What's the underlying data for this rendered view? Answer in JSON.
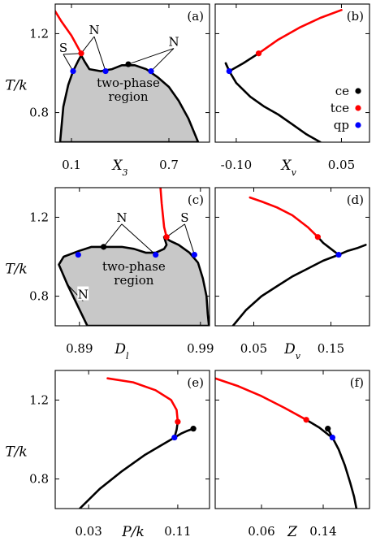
{
  "figure": {
    "y_axis_label": "T/k",
    "legend": [
      {
        "label": "ce",
        "color": "#000000"
      },
      {
        "label": "tce",
        "color": "#ff0000"
      },
      {
        "label": "qp",
        "color": "#0000ff"
      }
    ],
    "region_label": [
      "two-phase",
      "region"
    ]
  },
  "chart_data": [
    {
      "type": "line",
      "panel": "(a)",
      "xlabel": "X_3",
      "ylabel": "T/k",
      "xlim": [
        0.0,
        0.95
      ],
      "ylim": [
        0.65,
        1.35
      ],
      "x_ticks": [
        0.1,
        0.4,
        0.7
      ],
      "x_tick_labels": [
        "0.1",
        "X_3",
        "0.7"
      ],
      "y_ticks": [
        0.8,
        1.2
      ],
      "y_tick_labels": [
        "0.8",
        "1.2"
      ],
      "series": [
        {
          "color": "black",
          "fill": "#c8c8c8",
          "closed": true,
          "x": [
            0.03,
            0.05,
            0.08,
            0.11,
            0.14,
            0.16,
            0.18,
            0.21,
            0.28,
            0.35,
            0.41,
            0.49,
            0.56,
            0.63,
            0.7,
            0.76,
            0.82,
            0.86,
            0.88
          ],
          "y": [
            0.65,
            0.83,
            0.94,
            1.01,
            1.06,
            1.09,
            1.06,
            1.02,
            1.01,
            1.02,
            1.04,
            1.04,
            1.02,
            0.98,
            0.93,
            0.86,
            0.77,
            0.69,
            0.65
          ]
        },
        {
          "color": "red",
          "x": [
            -0.05,
            0.04,
            0.1,
            0.16
          ],
          "y": [
            1.38,
            1.26,
            1.19,
            1.1
          ]
        }
      ],
      "points": [
        {
          "kind": "tce",
          "x": 0.16,
          "y": 1.1
        },
        {
          "kind": "ce",
          "x": 0.45,
          "y": 1.045
        },
        {
          "kind": "qp",
          "x": 0.11,
          "y": 1.01
        },
        {
          "kind": "qp",
          "x": 0.31,
          "y": 1.01
        },
        {
          "kind": "qp",
          "x": 0.59,
          "y": 1.01
        }
      ],
      "annotations": [
        {
          "text": "S",
          "x": 0.05,
          "y": 1.12,
          "to": [
            [
              0.11,
              1.01
            ],
            [
              0.16,
              1.1
            ]
          ]
        },
        {
          "text": "N",
          "x": 0.24,
          "y": 1.21,
          "to": [
            [
              0.16,
              1.1
            ],
            [
              0.31,
              1.01
            ]
          ]
        },
        {
          "text": "N",
          "x": 0.73,
          "y": 1.15,
          "to": [
            [
              0.45,
              1.045
            ],
            [
              0.59,
              1.01
            ]
          ]
        }
      ],
      "region_text": {
        "x": 0.45,
        "y": 0.93
      }
    },
    {
      "type": "line",
      "panel": "(b)",
      "xlabel": "X_v",
      "ylabel": "",
      "xlim": [
        -0.13,
        0.09
      ],
      "ylim": [
        0.65,
        1.35
      ],
      "x_ticks": [
        -0.1,
        -0.025,
        0.05
      ],
      "x_tick_labels": [
        "-0.10",
        "X_v",
        "0.05"
      ],
      "y_ticks": [
        0.8,
        1.2
      ],
      "y_tick_labels": [
        "",
        ""
      ],
      "series": [
        {
          "color": "black",
          "x": [
            -0.115,
            -0.11,
            -0.1,
            -0.08,
            -0.06,
            -0.04,
            -0.02,
            0.0,
            0.02
          ],
          "y": [
            1.05,
            1.01,
            0.95,
            0.88,
            0.83,
            0.79,
            0.74,
            0.69,
            0.65
          ]
        },
        {
          "color": "black",
          "x": [
            -0.115,
            -0.11,
            -0.09,
            -0.068
          ],
          "y": [
            1.05,
            1.01,
            1.05,
            1.1
          ]
        },
        {
          "color": "red",
          "x": [
            -0.068,
            -0.04,
            -0.01,
            0.02,
            0.05
          ],
          "y": [
            1.1,
            1.17,
            1.23,
            1.28,
            1.32
          ]
        }
      ],
      "points": [
        {
          "kind": "tce",
          "x": -0.068,
          "y": 1.1
        },
        {
          "kind": "qp",
          "x": -0.11,
          "y": 1.01
        }
      ],
      "legend_pos": "right"
    },
    {
      "type": "line",
      "panel": "(c)",
      "xlabel": "D_l",
      "ylabel": "T/k",
      "xlim": [
        0.87,
        0.9975
      ],
      "ylim": [
        0.65,
        1.35
      ],
      "x_ticks": [
        0.89,
        0.925,
        0.99
      ],
      "x_tick_labels": [
        "0.89",
        "D_l",
        "0.99"
      ],
      "y_ticks": [
        0.8,
        1.2
      ],
      "y_tick_labels": [
        "0.8",
        "1.2"
      ],
      "series": [
        {
          "color": "black",
          "fill": "#c8c8c8",
          "closed": true,
          "x": [
            0.8965,
            0.88,
            0.873,
            0.877,
            0.89,
            0.9,
            0.91,
            0.925,
            0.935,
            0.945,
            0.953,
            0.96,
            0.962,
            0.96,
            0.965,
            0.972,
            0.981,
            0.988,
            0.992,
            0.995,
            0.996,
            0.997
          ],
          "y": [
            0.65,
            0.86,
            0.96,
            1.0,
            1.03,
            1.05,
            1.05,
            1.05,
            1.04,
            1.02,
            1.02,
            1.04,
            1.06,
            1.1,
            1.08,
            1.06,
            1.02,
            0.97,
            0.89,
            0.8,
            0.71,
            0.65
          ]
        },
        {
          "color": "red",
          "x": [
            0.957,
            0.958,
            0.959,
            0.96,
            0.962
          ],
          "y": [
            1.35,
            1.27,
            1.21,
            1.15,
            1.1
          ]
        }
      ],
      "points": [
        {
          "kind": "tce",
          "x": 0.962,
          "y": 1.1
        },
        {
          "kind": "ce",
          "x": 0.91,
          "y": 1.05
        },
        {
          "kind": "qp",
          "x": 0.889,
          "y": 1.01
        },
        {
          "kind": "qp",
          "x": 0.953,
          "y": 1.01
        },
        {
          "kind": "qp",
          "x": 0.985,
          "y": 1.01
        }
      ],
      "annotations": [
        {
          "text": "N",
          "x": 0.925,
          "y": 1.19,
          "to": [
            [
              0.91,
              1.05
            ],
            [
              0.953,
              1.01
            ]
          ]
        },
        {
          "text": "S",
          "x": 0.977,
          "y": 1.19,
          "to": [
            [
              0.962,
              1.1
            ],
            [
              0.985,
              1.01
            ]
          ]
        },
        {
          "text": "N",
          "x": 0.893,
          "y": 0.8,
          "to": [
            [
              0.88,
              0.86
            ]
          ]
        }
      ],
      "region_text": {
        "x": 0.935,
        "y": 0.93
      }
    },
    {
      "type": "line",
      "panel": "(d)",
      "xlabel": "D_v",
      "ylabel": "",
      "xlim": [
        0.0,
        0.2
      ],
      "ylim": [
        0.65,
        1.35
      ],
      "x_ticks": [
        0.05,
        0.1,
        0.15
      ],
      "x_tick_labels": [
        "0.05",
        "D_v",
        "0.15"
      ],
      "y_ticks": [
        0.8,
        1.2
      ],
      "y_tick_labels": [
        "",
        ""
      ],
      "series": [
        {
          "color": "black",
          "x": [
            0.023,
            0.04,
            0.06,
            0.08,
            0.1,
            0.12,
            0.14,
            0.16
          ],
          "y": [
            0.65,
            0.73,
            0.8,
            0.85,
            0.9,
            0.94,
            0.98,
            1.01
          ]
        },
        {
          "color": "black",
          "x": [
            0.16,
            0.172,
            0.185,
            0.195
          ],
          "y": [
            1.01,
            1.03,
            1.045,
            1.06
          ]
        },
        {
          "color": "black",
          "x": [
            0.16,
            0.15,
            0.14,
            0.133
          ],
          "y": [
            1.01,
            1.04,
            1.07,
            1.1
          ]
        },
        {
          "color": "red",
          "x": [
            0.133,
            0.12,
            0.1,
            0.08,
            0.06,
            0.045
          ],
          "y": [
            1.1,
            1.15,
            1.21,
            1.25,
            1.28,
            1.3
          ]
        }
      ],
      "points": [
        {
          "kind": "tce",
          "x": 0.133,
          "y": 1.1
        },
        {
          "kind": "qp",
          "x": 0.16,
          "y": 1.01
        }
      ]
    },
    {
      "type": "line",
      "panel": "(e)",
      "xlabel": "P/k",
      "ylabel": "T/k",
      "xlim": [
        0.0,
        0.1385
      ],
      "ylim": [
        0.65,
        1.35
      ],
      "x_ticks": [
        0.03,
        0.07,
        0.11
      ],
      "x_tick_labels": [
        "0.03",
        "P/k",
        "0.11"
      ],
      "y_ticks": [
        0.8,
        1.2
      ],
      "y_tick_labels": [
        "0.8",
        "1.2"
      ],
      "series": [
        {
          "color": "black",
          "x": [
            0.022,
            0.04,
            0.06,
            0.08,
            0.095,
            0.107
          ],
          "y": [
            0.65,
            0.75,
            0.84,
            0.92,
            0.97,
            1.01
          ]
        },
        {
          "color": "black",
          "x": [
            0.107,
            0.113,
            0.119,
            0.124
          ],
          "y": [
            1.01,
            1.03,
            1.045,
            1.055
          ]
        },
        {
          "color": "black",
          "x": [
            0.107,
            0.109,
            0.11
          ],
          "y": [
            1.01,
            1.05,
            1.09
          ]
        },
        {
          "color": "red",
          "x": [
            0.11,
            0.109,
            0.104,
            0.09,
            0.07,
            0.047
          ],
          "y": [
            1.09,
            1.15,
            1.2,
            1.25,
            1.29,
            1.31
          ]
        }
      ],
      "points": [
        {
          "kind": "tce",
          "x": 0.11,
          "y": 1.09
        },
        {
          "kind": "ce",
          "x": 0.124,
          "y": 1.055
        },
        {
          "kind": "qp",
          "x": 0.107,
          "y": 1.01
        }
      ]
    },
    {
      "type": "line",
      "panel": "(f)",
      "xlabel": "Z",
      "ylabel": "",
      "xlim": [
        0.0,
        0.2
      ],
      "ylim": [
        0.65,
        1.35
      ],
      "x_ticks": [
        0.06,
        0.1,
        0.14
      ],
      "x_tick_labels": [
        "0.06",
        "Z",
        "0.14"
      ],
      "y_ticks": [
        0.8,
        1.2
      ],
      "y_tick_labels": [
        "",
        ""
      ],
      "series": [
        {
          "color": "red",
          "x": [
            0.0,
            0.03,
            0.06,
            0.09,
            0.118
          ],
          "y": [
            1.31,
            1.27,
            1.22,
            1.16,
            1.1
          ]
        },
        {
          "color": "black",
          "x": [
            0.118,
            0.135,
            0.148,
            0.152
          ],
          "y": [
            1.1,
            1.06,
            1.02,
            1.01
          ]
        },
        {
          "color": "black",
          "x": [
            0.152,
            0.146
          ],
          "y": [
            1.01,
            1.055
          ]
        },
        {
          "color": "black",
          "x": [
            0.152,
            0.16,
            0.168,
            0.175,
            0.18,
            0.183
          ],
          "y": [
            1.01,
            0.95,
            0.87,
            0.78,
            0.71,
            0.65
          ]
        }
      ],
      "points": [
        {
          "kind": "tce",
          "x": 0.118,
          "y": 1.1
        },
        {
          "kind": "ce",
          "x": 0.146,
          "y": 1.055
        },
        {
          "kind": "qp",
          "x": 0.152,
          "y": 1.01
        }
      ]
    }
  ]
}
